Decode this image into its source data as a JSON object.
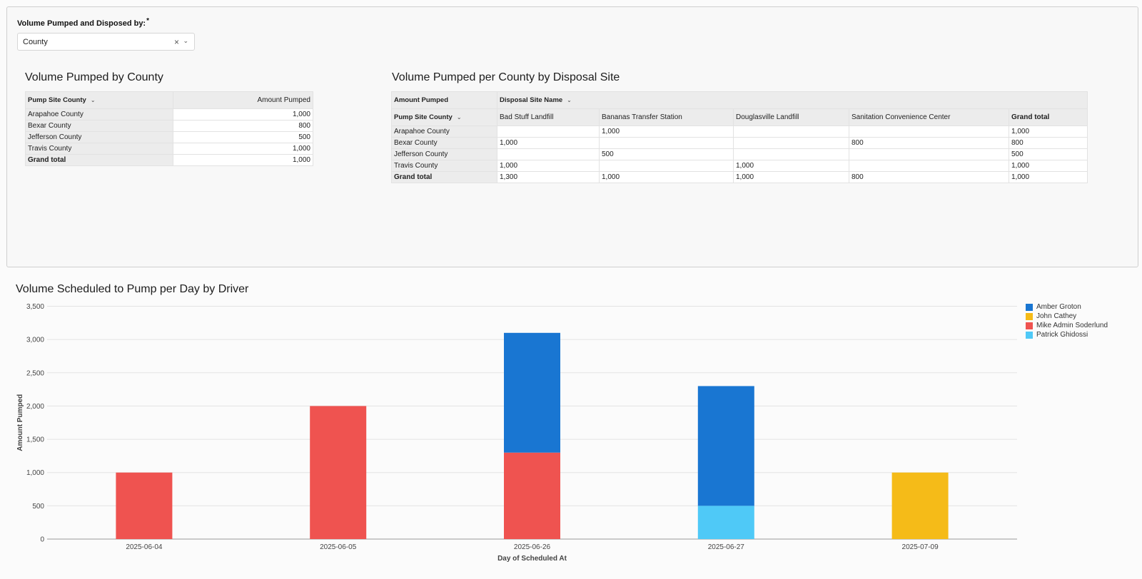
{
  "filter": {
    "label": "Volume Pumped and Disposed by:",
    "required_mark": "*",
    "value": "County",
    "clear_icon": "×",
    "chevron_icon": "⌄"
  },
  "table1": {
    "title": "Volume Pumped by County",
    "col_row_header": "Pump Site County",
    "col_value_header": "Amount Pumped",
    "rows": [
      {
        "label": "Arapahoe County",
        "value": "1,000"
      },
      {
        "label": "Bexar County",
        "value": "800"
      },
      {
        "label": "Jefferson County",
        "value": "500"
      },
      {
        "label": "Travis County",
        "value": "1,000"
      }
    ],
    "grand_total_label": "Grand total",
    "grand_total_value": "1,000"
  },
  "table2": {
    "title": "Volume Pumped per County by Disposal Site",
    "value_header": "Amount Pumped",
    "pivot_header": "Disposal Site Name",
    "row_header": "Pump Site County",
    "columns": [
      "Bad Stuff Landfill",
      "Bananas Transfer Station",
      "Douglasville Landfill",
      "Sanitation Convenience Center",
      "Grand total"
    ],
    "rows": [
      {
        "label": "Arapahoe County",
        "cells": [
          "",
          "1,000",
          "",
          "",
          "1,000"
        ]
      },
      {
        "label": "Bexar County",
        "cells": [
          "1,000",
          "",
          "",
          "800",
          "800"
        ]
      },
      {
        "label": "Jefferson County",
        "cells": [
          "",
          "500",
          "",
          "",
          "500"
        ]
      },
      {
        "label": "Travis County",
        "cells": [
          "1,000",
          "",
          "1,000",
          "",
          "1,000"
        ]
      },
      {
        "label": "Grand total",
        "cells": [
          "1,300",
          "1,000",
          "1,000",
          "800",
          "1,000"
        ]
      }
    ]
  },
  "chart_title": "Volume Scheduled to Pump per Day by Driver",
  "chart_data": {
    "type": "bar",
    "stacked": true,
    "title": "Volume Scheduled to Pump per Day by Driver",
    "xlabel": "Day of Scheduled At",
    "ylabel": "Amount Pumped",
    "ylim": [
      0,
      3500
    ],
    "yticks": [
      0,
      500,
      1000,
      1500,
      2000,
      2500,
      3000,
      3500
    ],
    "ytick_labels": [
      "0",
      "500",
      "1,000",
      "1,500",
      "2,000",
      "2,500",
      "3,000",
      "3,500"
    ],
    "categories": [
      "2025-06-04",
      "2025-06-05",
      "2025-06-26",
      "2025-06-27",
      "2025-07-09"
    ],
    "series": [
      {
        "name": "Patrick Ghidossi",
        "color": "#4fc9f7",
        "values": [
          0,
          0,
          0,
          500,
          0
        ]
      },
      {
        "name": "Mike Admin Soderlund",
        "color": "#ef5350",
        "values": [
          1000,
          2000,
          1300,
          0,
          0
        ]
      },
      {
        "name": "John Cathey",
        "color": "#f5bb18",
        "values": [
          0,
          0,
          0,
          0,
          1000
        ]
      },
      {
        "name": "Amber Groton",
        "color": "#1976d2",
        "values": [
          0,
          0,
          1800,
          1800,
          0
        ]
      }
    ],
    "legend": [
      "Amber Groton",
      "John Cathey",
      "Mike Admin Soderlund",
      "Patrick Ghidossi"
    ],
    "legend_position": "top-right",
    "grid": true
  }
}
